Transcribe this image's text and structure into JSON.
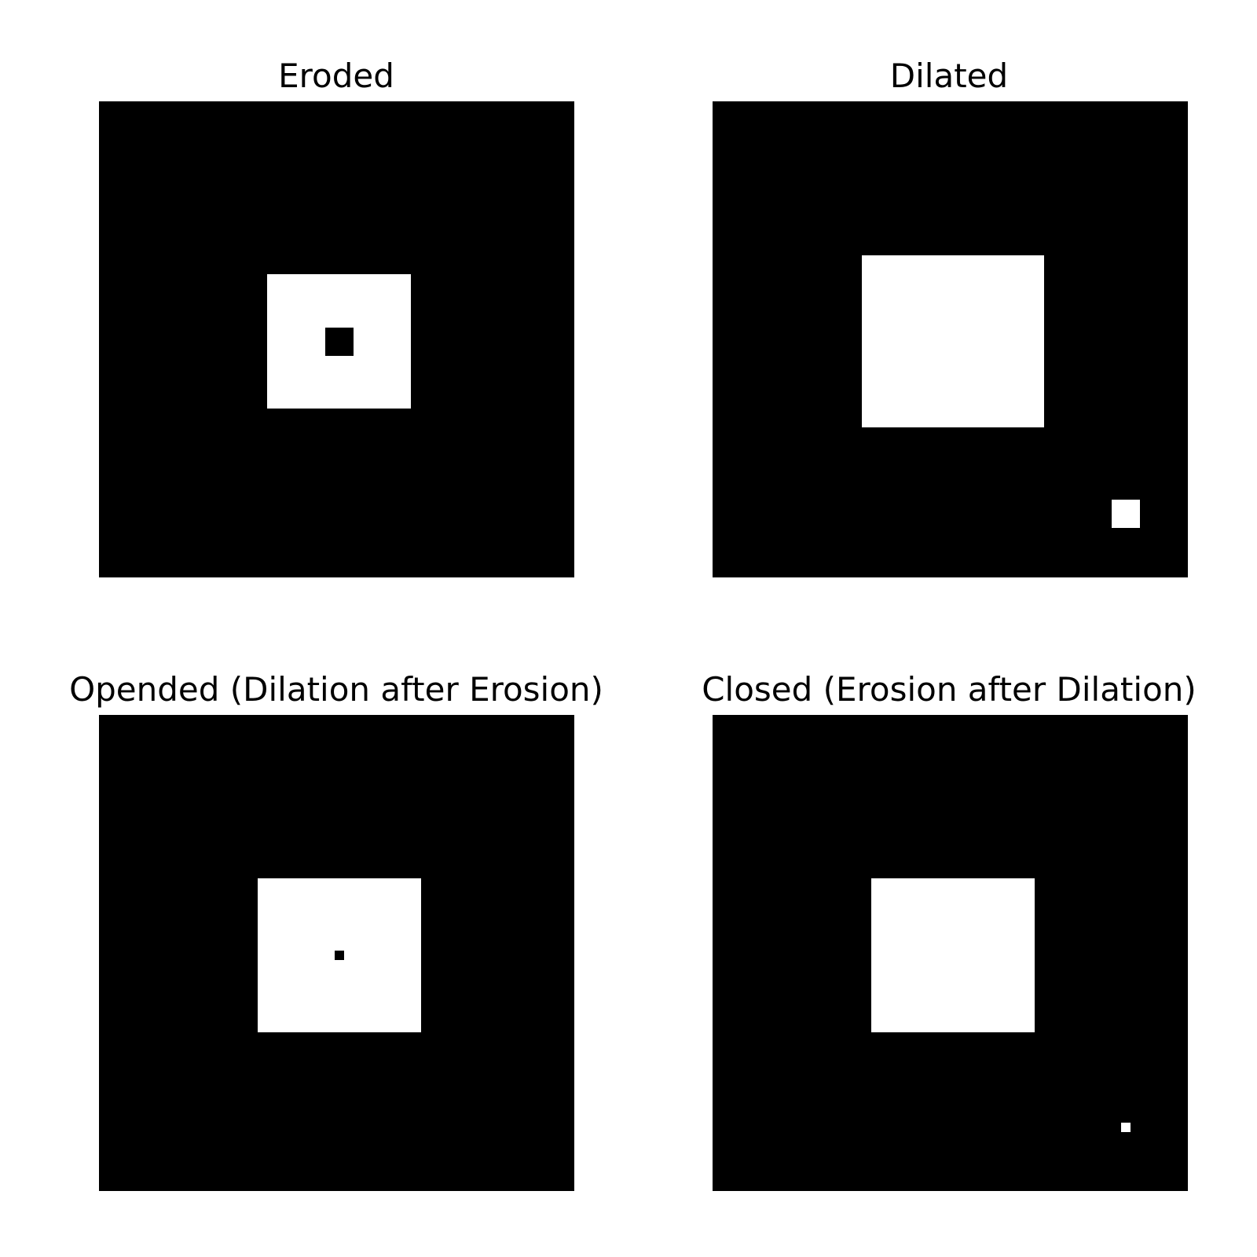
{
  "panels": {
    "eroded": {
      "title": "Eroded"
    },
    "dilated": {
      "title": "Dilated"
    },
    "opened": {
      "title": "Opended (Dilation after Erosion)"
    },
    "closed": {
      "title": "Closed (Erosion after Dilation)"
    }
  },
  "colors": {
    "background": "#000000",
    "foreground": "#ffffff",
    "page": "#ffffff"
  }
}
